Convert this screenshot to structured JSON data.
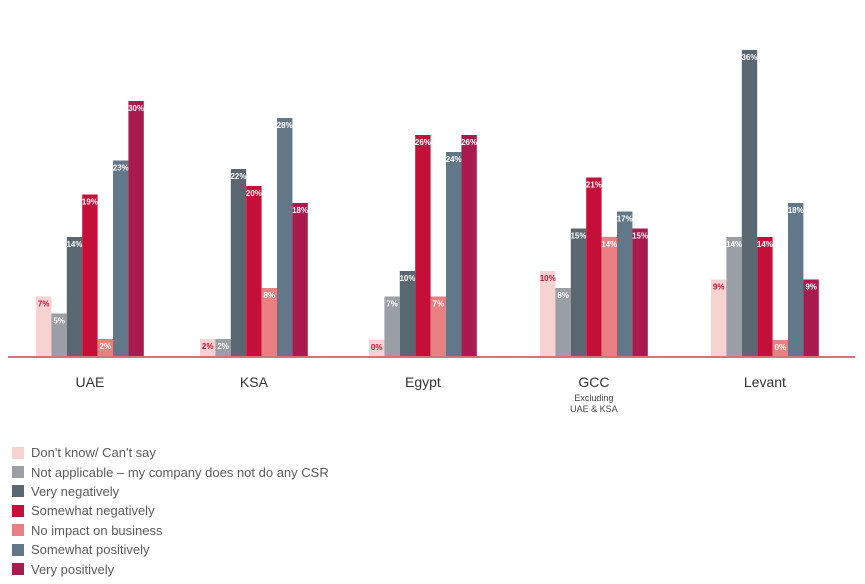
{
  "chart_data": {
    "type": "bar",
    "title": "",
    "xlabel": "",
    "ylabel": "",
    "ylim": [
      0,
      36
    ],
    "grid": false,
    "legend_position": "bottom-left",
    "categories": [
      "UAE",
      "KSA",
      "Egypt",
      "GCC",
      "Levant"
    ],
    "category_sublabels": [
      "",
      "",
      "",
      "Excluding UAE & KSA",
      ""
    ],
    "value_suffix": "%",
    "series": [
      {
        "name": "Don't know/ Can't say",
        "color": "#f6d3d1",
        "label_color": "#c41039",
        "values": [
          7,
          2,
          0,
          10,
          9
        ]
      },
      {
        "name": "Not applicable – my company does not do any CSR",
        "color": "#9a9fa6",
        "label_color": "#ffffff",
        "values": [
          5,
          2,
          7,
          8,
          14
        ]
      },
      {
        "name": "Very negatively",
        "color": "#5a6670",
        "label_color": "#ffffff",
        "values": [
          14,
          22,
          10,
          15,
          36
        ]
      },
      {
        "name": "Somewhat negatively",
        "color": "#c41039",
        "label_color": "#ffffff",
        "values": [
          19,
          20,
          26,
          21,
          14
        ]
      },
      {
        "name": "No impact on business",
        "color": "#e88081",
        "label_color": "#ffffff",
        "values": [
          2,
          8,
          7,
          14,
          0
        ]
      },
      {
        "name": "Somewhat positively",
        "color": "#627889",
        "label_color": "#ffffff",
        "values": [
          23,
          28,
          24,
          17,
          18
        ]
      },
      {
        "name": "Very positively",
        "color": "#a81b4c",
        "label_color": "#ffffff",
        "values": [
          30,
          18,
          26,
          15,
          9
        ]
      }
    ]
  }
}
